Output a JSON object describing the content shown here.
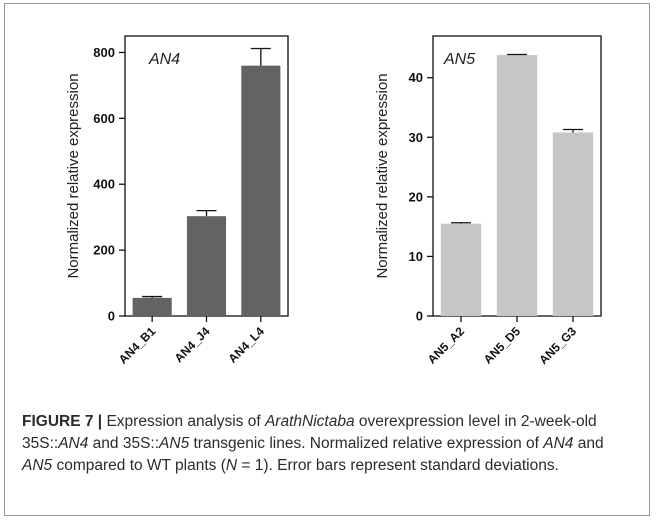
{
  "chart_data": [
    {
      "type": "bar",
      "panel_label": "AN4",
      "categories": [
        "AN4_B1",
        "AN4_J4",
        "AN4_L4"
      ],
      "values": [
        55,
        303,
        760
      ],
      "errors": [
        4,
        17,
        52
      ],
      "ylabel": "Normalized relative expression",
      "ylim": [
        0,
        850
      ],
      "yticks": [
        0,
        200,
        400,
        600,
        800
      ],
      "bar_color": "#636363",
      "grid": false,
      "legend": "none"
    },
    {
      "type": "bar",
      "panel_label": "AN5",
      "categories": [
        "AN5_A2",
        "AN5_D5",
        "AN5_G3"
      ],
      "values": [
        15.5,
        43.8,
        30.8
      ],
      "errors": [
        0.15,
        0.1,
        0.5
      ],
      "ylabel": "Normalized relative expression",
      "ylim": [
        0,
        47
      ],
      "yticks": [
        0,
        10,
        20,
        30,
        40
      ],
      "bar_color": "#c6c6c6",
      "grid": false,
      "legend": "none"
    }
  ],
  "caption": {
    "figure_label": "FIGURE 7 |",
    "t1": " Expression analysis of ",
    "i1": "ArathNictaba",
    "t2": " overexpression level in 2-week-old 35S::",
    "i2": "AN4",
    "t3": " and 35S::",
    "i3": "AN5",
    "t4": " transgenic lines. Normalized relative expression of ",
    "i4": "AN4",
    "t5": " and ",
    "i5": "AN5",
    "t6": " compared to WT plants (",
    "i6": "N",
    "t7": " = 1). Error bars represent standard deviations."
  }
}
